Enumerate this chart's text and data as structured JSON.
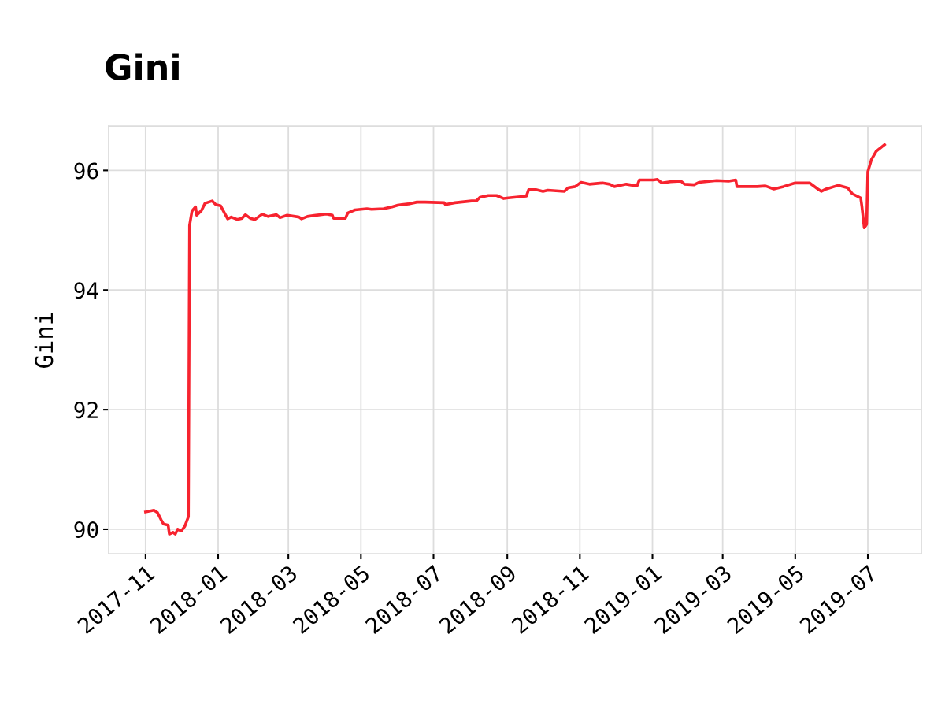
{
  "chart_data": {
    "type": "line",
    "title": "Gini",
    "ylabel": "Gini",
    "x": [
      "2017-11-01",
      "2017-11-08",
      "2017-11-11",
      "2017-11-14",
      "2017-11-16",
      "2017-11-20",
      "2017-11-21",
      "2017-11-24",
      "2017-11-26",
      "2017-11-28",
      "2017-12-01",
      "2017-12-04",
      "2017-12-07",
      "2017-12-08",
      "2017-12-10",
      "2017-12-13",
      "2017-12-14",
      "2017-12-18",
      "2017-12-21",
      "2017-12-27",
      "2017-12-30",
      "2018-01-03",
      "2018-01-09",
      "2018-01-12",
      "2018-01-17",
      "2018-01-21",
      "2018-01-24",
      "2018-01-28",
      "2018-02-01",
      "2018-02-07",
      "2018-02-12",
      "2018-02-19",
      "2018-02-22",
      "2018-02-28",
      "2018-03-10",
      "2018-03-12",
      "2018-03-17",
      "2018-03-24",
      "2018-04-02",
      "2018-04-07",
      "2018-04-08",
      "2018-04-18",
      "2018-04-20",
      "2018-04-26",
      "2018-05-06",
      "2018-05-10",
      "2018-05-20",
      "2018-05-27",
      "2018-06-01",
      "2018-06-10",
      "2018-06-17",
      "2018-06-24",
      "2018-07-10",
      "2018-07-11",
      "2018-07-19",
      "2018-08-02",
      "2018-08-06",
      "2018-08-09",
      "2018-08-16",
      "2018-08-23",
      "2018-08-29",
      "2018-09-02",
      "2018-09-17",
      "2018-09-19",
      "2018-09-25",
      "2018-10-01",
      "2018-10-05",
      "2018-10-19",
      "2018-10-22",
      "2018-10-28",
      "2018-11-02",
      "2018-11-09",
      "2018-11-20",
      "2018-11-26",
      "2018-11-30",
      "2018-12-10",
      "2018-12-19",
      "2018-12-21",
      "2019-01-02",
      "2019-01-05",
      "2019-01-09",
      "2019-01-16",
      "2019-01-25",
      "2019-01-28",
      "2019-02-05",
      "2019-02-09",
      "2019-02-24",
      "2019-03-06",
      "2019-03-12",
      "2019-03-13",
      "2019-03-19",
      "2019-03-30",
      "2019-04-06",
      "2019-04-13",
      "2019-04-21",
      "2019-05-01",
      "2019-05-13",
      "2019-05-20",
      "2019-05-23",
      "2019-05-27",
      "2019-06-06",
      "2019-06-14",
      "2019-06-18",
      "2019-06-25",
      "2019-06-26",
      "2019-06-28",
      "2019-06-30",
      "2019-07-01",
      "2019-07-04",
      "2019-07-08",
      "2019-07-15"
    ],
    "series": [
      {
        "color": "#f7232f",
        "values": [
          90.29,
          90.32,
          90.28,
          90.16,
          90.09,
          90.07,
          89.92,
          89.95,
          89.92,
          90.0,
          89.97,
          90.05,
          90.21,
          95.08,
          95.32,
          95.39,
          95.25,
          95.33,
          95.45,
          95.49,
          95.43,
          95.41,
          95.19,
          95.22,
          95.18,
          95.2,
          95.26,
          95.2,
          95.18,
          95.27,
          95.23,
          95.26,
          95.21,
          95.25,
          95.22,
          95.19,
          95.23,
          95.25,
          95.27,
          95.25,
          95.2,
          95.2,
          95.29,
          95.34,
          95.36,
          95.35,
          95.36,
          95.39,
          95.42,
          95.44,
          95.47,
          95.47,
          95.46,
          95.43,
          95.46,
          95.49,
          95.49,
          95.55,
          95.58,
          95.58,
          95.53,
          95.54,
          95.57,
          95.68,
          95.68,
          95.65,
          95.67,
          95.65,
          95.71,
          95.73,
          95.8,
          95.77,
          95.79,
          95.77,
          95.73,
          95.77,
          95.74,
          95.84,
          95.84,
          95.85,
          95.79,
          95.81,
          95.82,
          95.77,
          95.76,
          95.8,
          95.83,
          95.82,
          95.84,
          95.73,
          95.73,
          95.73,
          95.74,
          95.69,
          95.73,
          95.79,
          95.79,
          95.69,
          95.65,
          95.69,
          95.75,
          95.71,
          95.61,
          95.54,
          95.4,
          95.04,
          95.1,
          95.98,
          96.18,
          96.32,
          96.43
        ]
      }
    ],
    "xlim": [
      "2017-10-01",
      "2019-08-15"
    ],
    "xticks": [
      "2017-11",
      "2018-01",
      "2018-03",
      "2018-05",
      "2018-07",
      "2018-09",
      "2018-11",
      "2019-01",
      "2019-03",
      "2019-05",
      "2019-07"
    ],
    "ylim": [
      89.59,
      96.74
    ],
    "yticks": [
      90,
      92,
      94,
      96
    ],
    "grid": true,
    "line_style": "solid",
    "marker": "none"
  }
}
